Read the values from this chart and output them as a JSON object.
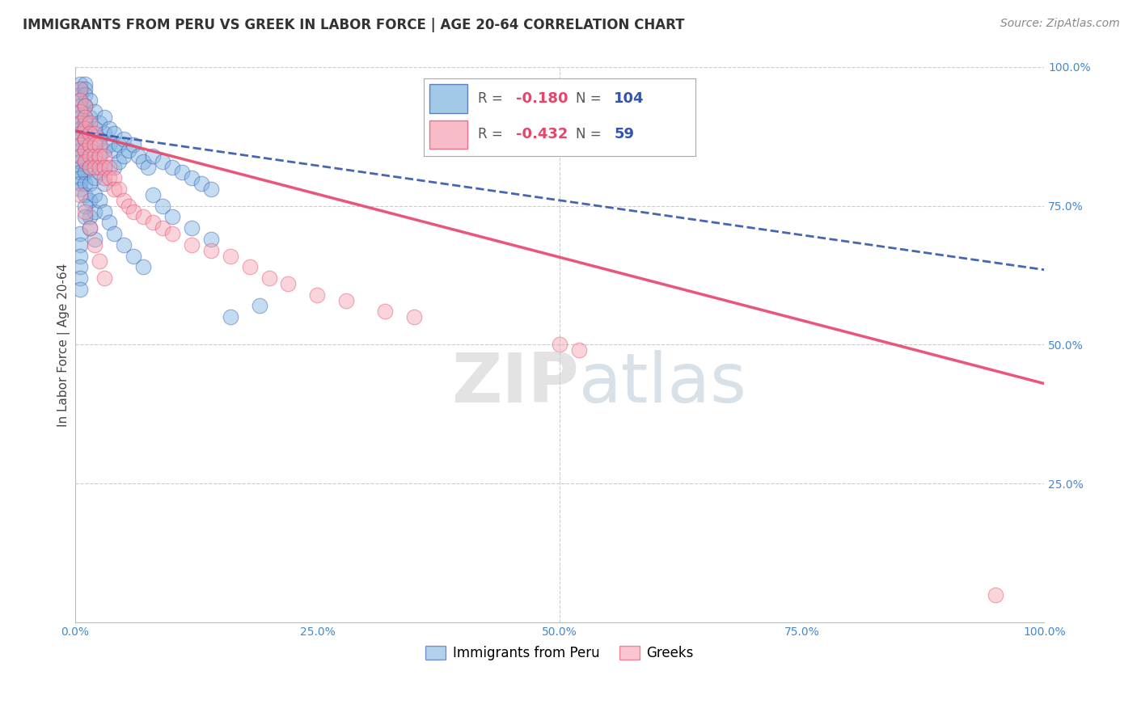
{
  "title": "IMMIGRANTS FROM PERU VS GREEK IN LABOR FORCE | AGE 20-64 CORRELATION CHART",
  "source": "Source: ZipAtlas.com",
  "ylabel": "In Labor Force | Age 20-64",
  "xlim": [
    0,
    1.0
  ],
  "ylim": [
    0,
    1.0
  ],
  "xticks": [
    0.0,
    0.25,
    0.5,
    0.75,
    1.0
  ],
  "xticklabels": [
    "0.0%",
    "25.0%",
    "50.0%",
    "75.0%",
    "100.0%"
  ],
  "yticks": [
    0.25,
    0.5,
    0.75,
    1.0
  ],
  "yticklabels": [
    "25.0%",
    "50.0%",
    "75.0%",
    "100.0%"
  ],
  "peru_R": -0.18,
  "peru_N": 104,
  "greek_R": -0.432,
  "greek_N": 59,
  "peru_color": "#7db3e0",
  "greek_color": "#f5a0b0",
  "peru_line_color": "#3355aa",
  "greek_line_color": "#e8446a",
  "watermark_zip": "ZIP",
  "watermark_atlas": "atlas",
  "background_color": "#ffffff",
  "grid_color": "#cccccc",
  "peru_line_y0": 0.885,
  "peru_line_y1": 0.635,
  "greek_line_y0": 0.885,
  "greek_line_y1": 0.43,
  "peru_scatter_x": [
    0.005,
    0.005,
    0.005,
    0.005,
    0.005,
    0.005,
    0.005,
    0.005,
    0.005,
    0.005,
    0.005,
    0.005,
    0.005,
    0.005,
    0.005,
    0.005,
    0.005,
    0.005,
    0.005,
    0.005,
    0.01,
    0.01,
    0.01,
    0.01,
    0.01,
    0.01,
    0.01,
    0.01,
    0.01,
    0.01,
    0.01,
    0.01,
    0.01,
    0.01,
    0.01,
    0.015,
    0.015,
    0.015,
    0.015,
    0.015,
    0.015,
    0.015,
    0.015,
    0.02,
    0.02,
    0.02,
    0.02,
    0.02,
    0.02,
    0.02,
    0.025,
    0.025,
    0.025,
    0.025,
    0.03,
    0.03,
    0.03,
    0.03,
    0.03,
    0.035,
    0.035,
    0.04,
    0.04,
    0.04,
    0.045,
    0.045,
    0.05,
    0.05,
    0.055,
    0.06,
    0.065,
    0.07,
    0.075,
    0.08,
    0.09,
    0.1,
    0.11,
    0.12,
    0.13,
    0.14,
    0.005,
    0.005,
    0.005,
    0.005,
    0.005,
    0.005,
    0.01,
    0.01,
    0.015,
    0.02,
    0.025,
    0.03,
    0.035,
    0.04,
    0.05,
    0.06,
    0.07,
    0.08,
    0.09,
    0.1,
    0.12,
    0.14,
    0.16,
    0.19
  ],
  "peru_scatter_y": [
    0.97,
    0.96,
    0.95,
    0.94,
    0.93,
    0.92,
    0.91,
    0.9,
    0.89,
    0.88,
    0.87,
    0.86,
    0.85,
    0.84,
    0.83,
    0.82,
    0.81,
    0.8,
    0.79,
    0.78,
    0.97,
    0.96,
    0.95,
    0.93,
    0.91,
    0.89,
    0.87,
    0.85,
    0.83,
    0.81,
    0.79,
    0.77,
    0.93,
    0.9,
    0.87,
    0.94,
    0.91,
    0.88,
    0.85,
    0.82,
    0.79,
    0.76,
    0.73,
    0.92,
    0.89,
    0.86,
    0.83,
    0.8,
    0.77,
    0.74,
    0.9,
    0.87,
    0.84,
    0.81,
    0.91,
    0.88,
    0.85,
    0.82,
    0.79,
    0.89,
    0.86,
    0.88,
    0.85,
    0.82,
    0.86,
    0.83,
    0.87,
    0.84,
    0.85,
    0.86,
    0.84,
    0.83,
    0.82,
    0.84,
    0.83,
    0.82,
    0.81,
    0.8,
    0.79,
    0.78,
    0.7,
    0.68,
    0.66,
    0.64,
    0.62,
    0.6,
    0.75,
    0.73,
    0.71,
    0.69,
    0.76,
    0.74,
    0.72,
    0.7,
    0.68,
    0.66,
    0.64,
    0.77,
    0.75,
    0.73,
    0.71,
    0.69,
    0.55,
    0.57
  ],
  "greek_scatter_x": [
    0.005,
    0.005,
    0.005,
    0.005,
    0.005,
    0.005,
    0.005,
    0.01,
    0.01,
    0.01,
    0.01,
    0.01,
    0.01,
    0.015,
    0.015,
    0.015,
    0.015,
    0.015,
    0.02,
    0.02,
    0.02,
    0.02,
    0.025,
    0.025,
    0.025,
    0.03,
    0.03,
    0.03,
    0.035,
    0.035,
    0.04,
    0.04,
    0.045,
    0.05,
    0.055,
    0.06,
    0.07,
    0.08,
    0.09,
    0.1,
    0.12,
    0.14,
    0.16,
    0.18,
    0.2,
    0.22,
    0.25,
    0.28,
    0.32,
    0.35,
    0.5,
    0.52,
    0.005,
    0.01,
    0.015,
    0.02,
    0.025,
    0.03,
    0.95
  ],
  "greek_scatter_y": [
    0.96,
    0.94,
    0.92,
    0.9,
    0.88,
    0.86,
    0.84,
    0.93,
    0.91,
    0.89,
    0.87,
    0.85,
    0.83,
    0.9,
    0.88,
    0.86,
    0.84,
    0.82,
    0.88,
    0.86,
    0.84,
    0.82,
    0.86,
    0.84,
    0.82,
    0.84,
    0.82,
    0.8,
    0.82,
    0.8,
    0.8,
    0.78,
    0.78,
    0.76,
    0.75,
    0.74,
    0.73,
    0.72,
    0.71,
    0.7,
    0.68,
    0.67,
    0.66,
    0.64,
    0.62,
    0.61,
    0.59,
    0.58,
    0.56,
    0.55,
    0.5,
    0.49,
    0.77,
    0.74,
    0.71,
    0.68,
    0.65,
    0.62,
    0.05
  ],
  "title_fontsize": 12,
  "axis_label_fontsize": 11,
  "tick_fontsize": 10,
  "legend_fontsize": 13,
  "source_fontsize": 10
}
